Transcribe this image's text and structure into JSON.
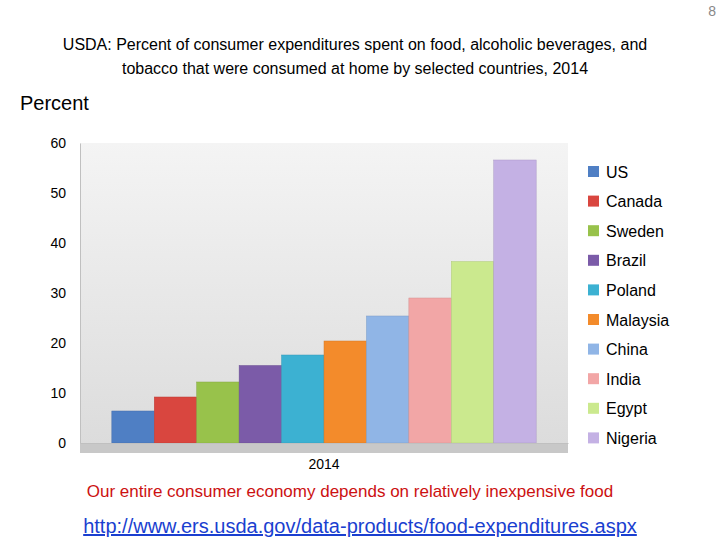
{
  "chart_data": {
    "type": "bar",
    "title": "USDA: Percent of consumer expenditures spent on food, alcoholic beverages, and tobacco that were consumed at home by selected countries, 2014",
    "y_label": "Percent",
    "categories": [
      "2014"
    ],
    "series": [
      {
        "name": "US",
        "color": "#4f7fc4",
        "values": [
          6.4
        ]
      },
      {
        "name": "Canada",
        "color": "#d9463f",
        "values": [
          9.2
        ]
      },
      {
        "name": "Sweden",
        "color": "#98c24b",
        "values": [
          12.2
        ]
      },
      {
        "name": "Brazil",
        "color": "#7b5ba8",
        "values": [
          15.5
        ]
      },
      {
        "name": "Poland",
        "color": "#3cb1d2",
        "values": [
          17.6
        ]
      },
      {
        "name": "Malaysia",
        "color": "#f38b2b",
        "values": [
          20.4
        ]
      },
      {
        "name": "China",
        "color": "#90b5e6",
        "values": [
          25.4
        ]
      },
      {
        "name": "India",
        "color": "#f2a6a6",
        "values": [
          29.0
        ]
      },
      {
        "name": "Egypt",
        "color": "#cbe98e",
        "values": [
          36.3
        ]
      },
      {
        "name": "Nigeria",
        "color": "#c4b1e4",
        "values": [
          56.6
        ]
      }
    ],
    "ylim": [
      0,
      60
    ],
    "yticks": [
      0,
      10,
      20,
      30,
      40,
      50,
      60
    ],
    "grid": false,
    "legend": "right",
    "annotations": [
      "Our entire consumer economy depends on relatively inexpensive food",
      "http://www.ers.usda.gov/data-products/food-expenditures.aspx"
    ],
    "page_number": "8"
  }
}
